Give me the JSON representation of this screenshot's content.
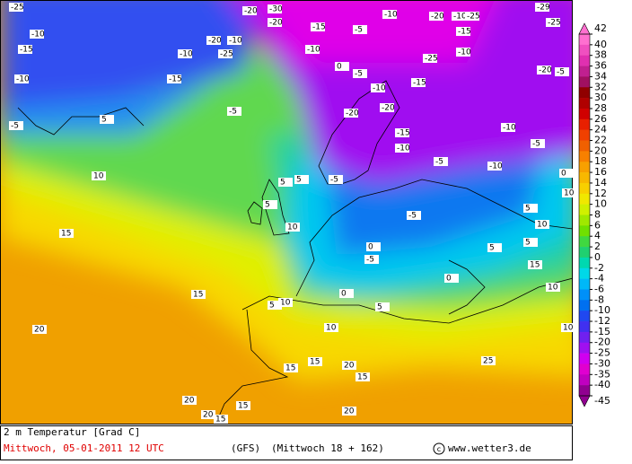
{
  "map": {
    "colorbar": {
      "ticks": [
        42,
        40,
        38,
        36,
        34,
        32,
        30,
        28,
        26,
        24,
        22,
        20,
        18,
        16,
        14,
        12,
        10,
        8,
        6,
        4,
        2,
        0,
        -2,
        -4,
        -6,
        -8,
        -10,
        -12,
        -15,
        -20,
        -25,
        -30,
        -35,
        -40,
        -45
      ],
      "colors": [
        "#ff70d0",
        "#f050c0",
        "#e030b0",
        "#c02090",
        "#a01060",
        "#900000",
        "#b00000",
        "#d00000",
        "#e82000",
        "#f04000",
        "#f06000",
        "#f88000",
        "#f8a000",
        "#f8b800",
        "#f8d000",
        "#f0e800",
        "#d0f000",
        "#a0e800",
        "#70e000",
        "#40d840",
        "#20d070",
        "#00d8b0",
        "#00d8e8",
        "#00b8f8",
        "#0090f8",
        "#0070f0",
        "#2048f0",
        "#4030f0",
        "#7020f0",
        "#a010f0",
        "#d000f0",
        "#e000d0",
        "#c000c0",
        "#900090"
      ]
    },
    "contour_labels": [
      -25,
      -10,
      -15,
      -10,
      -5,
      -20,
      -10,
      -25,
      -20,
      -30,
      -10,
      -20,
      -25,
      -29,
      -25,
      -5,
      -15,
      -10,
      -10,
      -20,
      -25,
      -10,
      -15,
      -25,
      -20,
      -10,
      -5,
      -5,
      -20,
      -15,
      -10,
      -20,
      -15,
      -10,
      -5,
      -10,
      -5,
      -5,
      0,
      5,
      5,
      10,
      5,
      5,
      10,
      15,
      15,
      10,
      5,
      0,
      0,
      -5,
      -5,
      5,
      0,
      5,
      10,
      15,
      20,
      15,
      15,
      20,
      20,
      15,
      10,
      15,
      20,
      15,
      20,
      25,
      10,
      10,
      5,
      0,
      -10,
      -15,
      -5,
      5,
      10
    ],
    "caption": {
      "variable": "2 m Temperatur [Grad C]",
      "date": "Mittwoch, 05-01-2011  12 UTC",
      "model": "(GFS)",
      "run": "(Mittwoch 18 + 162)",
      "source": "www.wetter3.de"
    }
  }
}
